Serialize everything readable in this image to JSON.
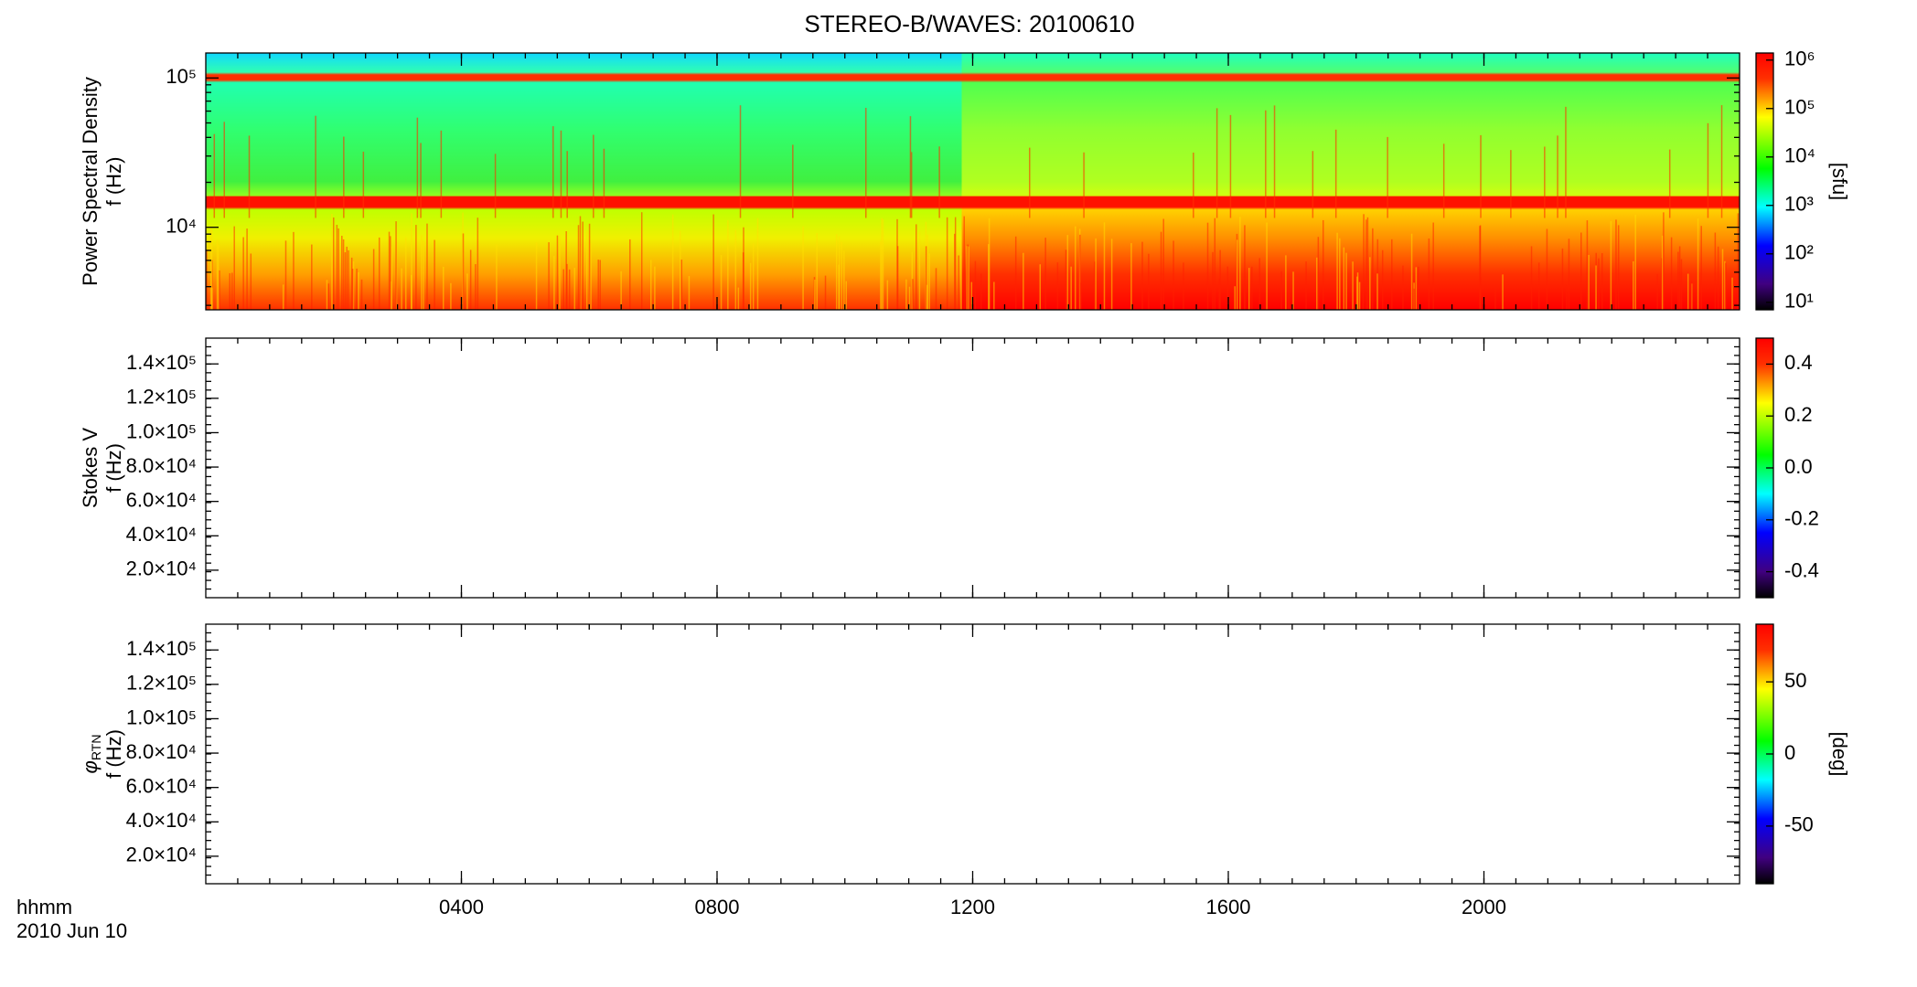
{
  "title": "STEREO-B/WAVES: 20100610",
  "x_axis": {
    "label": "hhmm",
    "date": "2010 Jun 10",
    "xlim": [
      0,
      24
    ],
    "xticks": [
      {
        "value": 4,
        "label": "0400"
      },
      {
        "value": 8,
        "label": "0800"
      },
      {
        "value": 12,
        "label": "1200"
      },
      {
        "value": 16,
        "label": "1600"
      },
      {
        "value": 20,
        "label": "2000"
      }
    ]
  },
  "chart_data": [
    {
      "type": "heatmap",
      "ylabel": [
        "Power Spectral Density",
        "f (Hz)"
      ],
      "yscale": "log",
      "ylim": [
        2800,
        147000
      ],
      "yticks": [
        {
          "value": 10000,
          "label": "10⁴"
        },
        {
          "value": 100000,
          "label": "10⁵"
        }
      ],
      "colorbar": {
        "label": "[sfu]",
        "scale": "log",
        "lim": [
          7,
          1400000
        ],
        "ticks": [
          {
            "value": 10,
            "label": "10¹"
          },
          {
            "value": 100,
            "label": "10²"
          },
          {
            "value": 1000,
            "label": "10³"
          },
          {
            "value": 10000,
            "label": "10⁴"
          },
          {
            "value": 100000,
            "label": "10⁵"
          },
          {
            "value": 1000000,
            "label": "10⁶"
          }
        ]
      }
    },
    {
      "type": "heatmap",
      "ylabel": [
        "Stokes V",
        "f (Hz)"
      ],
      "yscale": "linear",
      "ylim": [
        4000,
        155000
      ],
      "yticks": [
        {
          "value": 20000,
          "label": "2.0×10⁴"
        },
        {
          "value": 40000,
          "label": "4.0×10⁴"
        },
        {
          "value": 60000,
          "label": "6.0×10⁴"
        },
        {
          "value": 80000,
          "label": "8.0×10⁴"
        },
        {
          "value": 100000,
          "label": "1.0×10⁵"
        },
        {
          "value": 120000,
          "label": "1.2×10⁵"
        },
        {
          "value": 140000,
          "label": "1.4×10⁵"
        }
      ],
      "colorbar": {
        "scale": "linear",
        "lim": [
          -0.5,
          0.5
        ],
        "ticks": [
          {
            "value": -0.4,
            "label": "-0.4"
          },
          -0.2,
          {
            "value": 0,
            "label": "0.0"
          },
          0.2,
          0.4
        ]
      }
    },
    {
      "type": "heatmap",
      "ylabel": [
        {
          "text": "φ",
          "subscript": "RTN"
        },
        "f (Hz)"
      ],
      "yscale": "linear",
      "ylim": [
        4000,
        155000
      ],
      "yticks": [
        {
          "value": 20000,
          "label": "2.0×10⁴"
        },
        {
          "value": 40000,
          "label": "4.0×10⁴"
        },
        {
          "value": 60000,
          "label": "6.0×10⁴"
        },
        {
          "value": 80000,
          "label": "8.0×10⁴"
        },
        {
          "value": 100000,
          "label": "1.0×10⁵"
        },
        {
          "value": 120000,
          "label": "1.2×10⁵"
        },
        {
          "value": 140000,
          "label": "1.4×10⁵"
        }
      ],
      "colorbar": {
        "label": "[deg]",
        "scale": "linear",
        "lim": [
          -90,
          90
        ],
        "ticks": [
          -50,
          0,
          50
        ]
      }
    }
  ]
}
